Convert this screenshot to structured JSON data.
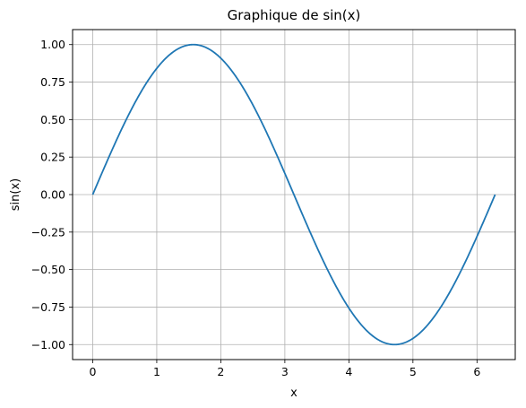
{
  "chart_data": {
    "type": "line",
    "title": "Graphique de sin(x)",
    "xlabel": "x",
    "ylabel": "sin(x)",
    "xlim": [
      -0.3142,
      6.5973
    ],
    "ylim": [
      -1.1,
      1.1
    ],
    "grid": true,
    "x_ticks": [
      0,
      1,
      2,
      3,
      4,
      5,
      6
    ],
    "x_tick_labels": [
      "0",
      "1",
      "2",
      "3",
      "4",
      "5",
      "6"
    ],
    "y_ticks": [
      -1.0,
      -0.75,
      -0.5,
      -0.25,
      0.0,
      0.25,
      0.5,
      0.75,
      1.0
    ],
    "y_tick_labels": [
      "−1.00",
      "−0.75",
      "−0.50",
      "−0.25",
      "0.00",
      "0.25",
      "0.50",
      "0.75",
      "1.00"
    ],
    "series": [
      {
        "name": "sin(x)",
        "color": "#1f77b4",
        "x": [
          0,
          0.2618,
          0.5236,
          0.7854,
          1.0472,
          1.309,
          1.5708,
          1.8326,
          2.0944,
          2.3562,
          2.618,
          2.8798,
          3.1416,
          3.4034,
          3.6652,
          3.927,
          4.1888,
          4.4506,
          4.7124,
          4.9742,
          5.236,
          5.4978,
          5.7596,
          6.0214,
          6.2832
        ],
        "y": [
          0,
          0.2588,
          0.5,
          0.7071,
          0.866,
          0.9659,
          1.0,
          0.9659,
          0.866,
          0.7071,
          0.5,
          0.2588,
          0.0,
          -0.2588,
          -0.5,
          -0.7071,
          -0.866,
          -0.9659,
          -1.0,
          -0.9659,
          -0.866,
          -0.7071,
          -0.5,
          -0.2588,
          0.0
        ]
      }
    ]
  }
}
